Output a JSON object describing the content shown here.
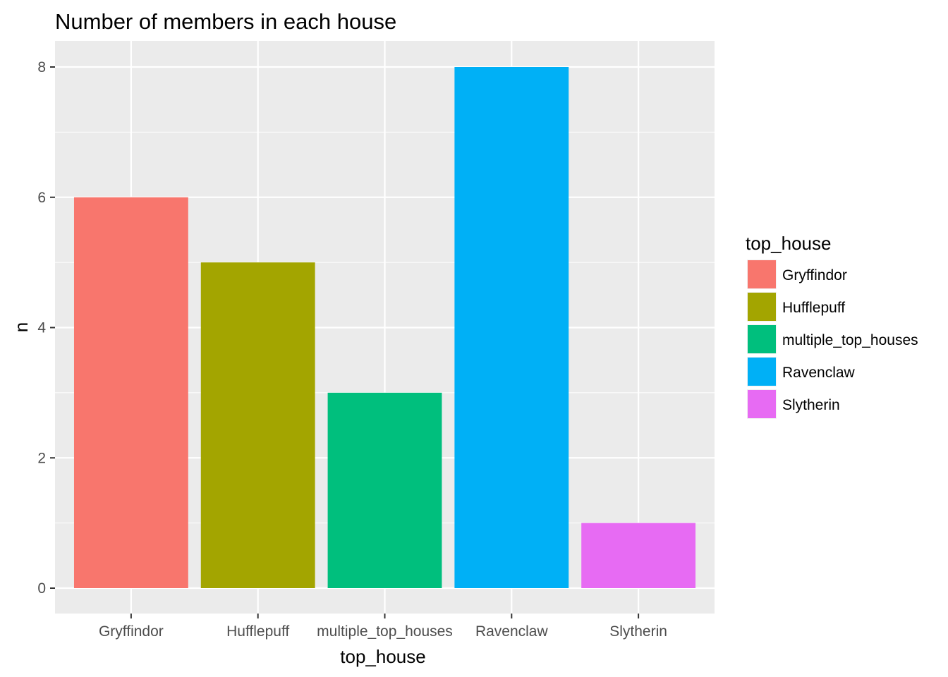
{
  "chart_data": {
    "type": "bar",
    "title": "Number of members in each house",
    "xlabel": "top_house",
    "ylabel": "n",
    "categories": [
      "Gryffindor",
      "Hufflepuff",
      "multiple_top_houses",
      "Ravenclaw",
      "Slytherin"
    ],
    "values": [
      6,
      5,
      3,
      8,
      1
    ],
    "colors": [
      "#F8766D",
      "#A3A500",
      "#00BF7D",
      "#00B0F6",
      "#E76BF3"
    ],
    "ylim": [
      0,
      8.4
    ],
    "yticks": [
      0,
      2,
      4,
      6,
      8
    ],
    "grid": true,
    "legend": {
      "title": "top_house",
      "placement": "right",
      "entries": [
        "Gryffindor",
        "Hufflepuff",
        "multiple_top_houses",
        "Ravenclaw",
        "Slytherin"
      ]
    },
    "panel_background": "#EBEBEB",
    "grid_color": "#FFFFFF"
  }
}
